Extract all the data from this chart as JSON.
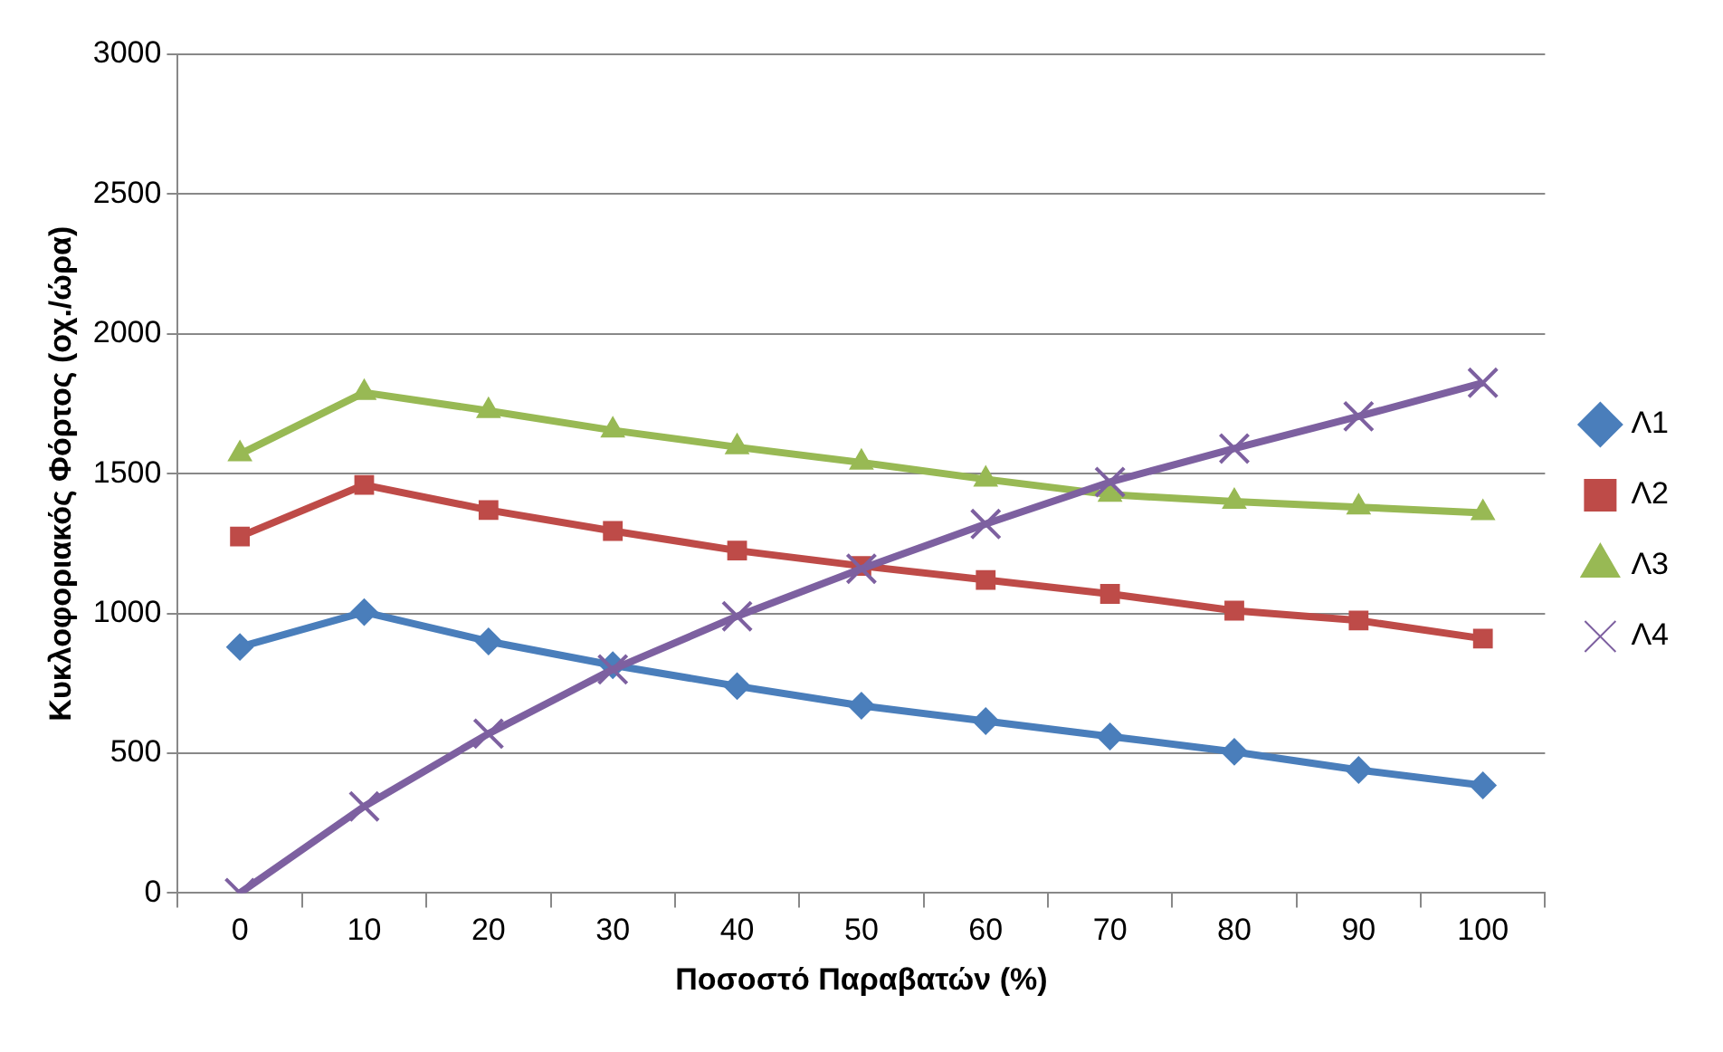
{
  "chart_data": {
    "type": "line",
    "xlabel": "Ποσοστό Παραβατών (%)",
    "ylabel": "Κυκλοφοριακός Φόρτος (οχ./ώρα)",
    "categories": [
      "0",
      "10",
      "20",
      "30",
      "40",
      "50",
      "60",
      "70",
      "80",
      "90",
      "100"
    ],
    "series": [
      {
        "name": "Λ1",
        "color": "#4a7ebb",
        "marker": "diamond",
        "values": [
          880,
          1005,
          900,
          815,
          740,
          670,
          615,
          560,
          505,
          440,
          385
        ]
      },
      {
        "name": "Λ2",
        "color": "#be4b48",
        "marker": "square",
        "values": [
          1275,
          1460,
          1370,
          1295,
          1225,
          1170,
          1120,
          1070,
          1010,
          975,
          910
        ]
      },
      {
        "name": "Λ3",
        "color": "#98b954",
        "marker": "triangle",
        "values": [
          1570,
          1790,
          1725,
          1655,
          1595,
          1540,
          1480,
          1425,
          1400,
          1380,
          1360
        ]
      },
      {
        "name": "Λ4",
        "color": "#7d60a0",
        "marker": "cross",
        "values": [
          0,
          310,
          570,
          800,
          990,
          1160,
          1320,
          1470,
          1590,
          1705,
          1825
        ]
      }
    ],
    "ylim": [
      0,
      3000
    ],
    "yticks": [
      0,
      500,
      1000,
      1500,
      2000,
      2500,
      3000
    ],
    "grid": "y",
    "legend": "right",
    "line_style": "solid"
  }
}
